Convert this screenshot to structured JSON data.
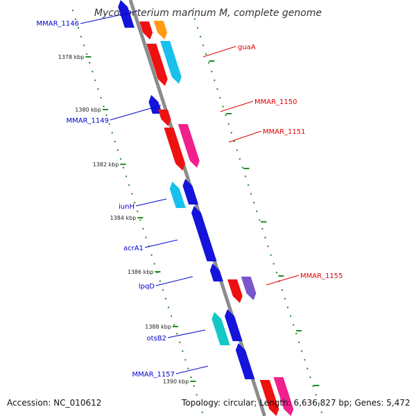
{
  "title": "Mycobacterium marinum M, complete genome",
  "footer": {
    "accession": "Accession: NC_010612",
    "summary": "Topology: circular; Length: 6,636,827 bp; Genes: 5,472"
  },
  "colors": {
    "backbone": "#8c8c8c",
    "ruler": "#1f8a1f",
    "minus_label": "#0000cc",
    "plus_label": "#dd0000"
  },
  "scale_labels": [
    "1378 kbp",
    "1380 kbp",
    "1382 kbp",
    "1384 kbp",
    "1386 kbp",
    "1388 kbp",
    "1390 kbp"
  ],
  "genes": [
    {
      "name": "MMAR_1146",
      "strand": "-",
      "color": "#1414dc"
    },
    {
      "name": "",
      "strand": "+",
      "color": "#ee1111"
    },
    {
      "name": "",
      "strand": "+",
      "color": "#ff9a14"
    },
    {
      "name": "guaA",
      "strand": "+",
      "color": "#ee1111"
    },
    {
      "name": "",
      "strand": "+",
      "color": "#18c0ee"
    },
    {
      "name": "MMAR_1149",
      "strand": "-",
      "color": "#1414dc"
    },
    {
      "name": "MMAR_1150",
      "strand": "+",
      "color": "#ee1111"
    },
    {
      "name": "MMAR_1151",
      "strand": "+",
      "color": "#ee1111"
    },
    {
      "name": "",
      "strand": "+",
      "color": "#f0208c"
    },
    {
      "name": "iunH",
      "strand": "-",
      "color": "#18c0ee"
    },
    {
      "name": "",
      "strand": "-",
      "color": "#1414dc"
    },
    {
      "name": "acrA1",
      "strand": "-",
      "color": "#1414dc"
    },
    {
      "name": "lpqD",
      "strand": "-",
      "color": "#1414dc"
    },
    {
      "name": "MMAR_1155",
      "strand": "+",
      "color": "#ee1111"
    },
    {
      "name": "",
      "strand": "+",
      "color": "#7a55cc"
    },
    {
      "name": "otsB2",
      "strand": "-",
      "color": "#14c8c8"
    },
    {
      "name": "",
      "strand": "-",
      "color": "#1414dc"
    },
    {
      "name": "MMAR_1157",
      "strand": "-",
      "color": "#1414dc"
    },
    {
      "name": "",
      "strand": "+",
      "color": "#ee1111"
    },
    {
      "name": "",
      "strand": "+",
      "color": "#f0208c"
    }
  ]
}
